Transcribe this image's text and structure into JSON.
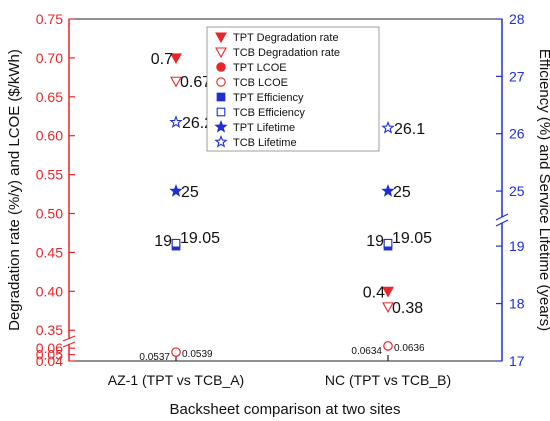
{
  "chart_data": {
    "type": "scatter",
    "categories": [
      "AZ-1 (TPT vs TCB_A)",
      "NC (TPT vs TCB_B)"
    ],
    "xlabel": "Backsheet comparison at two sites",
    "ylabel_left": "Degradation rate (%/y) and LCOE ($/kWh)",
    "ylabel_right": "Efficiency (%) and Service Lifetime (years)",
    "yaxis_left": {
      "lower_ticks": [
        "0.04",
        "0.05",
        "0.06"
      ],
      "upper_ticks": [
        "0.35",
        "0.40",
        "0.45",
        "0.50",
        "0.55",
        "0.60",
        "0.65",
        "0.70",
        "0.75"
      ],
      "lower_range": [
        0.04,
        0.065
      ],
      "upper_range": [
        0.34,
        0.75
      ],
      "break": true
    },
    "yaxis_right": {
      "lower_ticks": [
        "17",
        "18",
        "19"
      ],
      "upper_ticks": [
        "25",
        "26",
        "27",
        "28"
      ],
      "lower_range": [
        17,
        19.35
      ],
      "upper_range": [
        24.6,
        28
      ],
      "break": true
    },
    "legend": {
      "position": "top-center",
      "entries": [
        {
          "label": "TPT Degradation rate",
          "marker": "triangle-down-filled",
          "color": "#e8262a"
        },
        {
          "label": "TCB Degradation rate",
          "marker": "triangle-down-open",
          "color": "#e8262a"
        },
        {
          "label": "TPT LCOE",
          "marker": "circle-filled",
          "color": "#e8262a"
        },
        {
          "label": "TCB LCOE",
          "marker": "circle-open",
          "color": "#e8262a"
        },
        {
          "label": "TPT Efficiency",
          "marker": "square-filled",
          "color": "#1f2fd6"
        },
        {
          "label": "TCB Efficiency",
          "marker": "square-open",
          "color": "#1f2fd6"
        },
        {
          "label": "TPT Lifetime",
          "marker": "star-filled",
          "color": "#1f2fd6"
        },
        {
          "label": "TCB Lifetime",
          "marker": "star-open",
          "color": "#1f2fd6"
        }
      ]
    },
    "series": [
      {
        "name": "TPT Degradation rate",
        "axis": "left",
        "values": [
          0.7,
          0.4
        ],
        "labels": [
          "0.7",
          "0.4"
        ]
      },
      {
        "name": "TCB Degradation rate",
        "axis": "left",
        "values": [
          0.67,
          0.38
        ],
        "labels": [
          "0.67",
          "0.38"
        ]
      },
      {
        "name": "TPT LCOE",
        "axis": "left",
        "values": [
          0.0537,
          0.0634
        ],
        "labels": [
          "0.0537",
          "0.0634"
        ]
      },
      {
        "name": "TCB LCOE",
        "axis": "left",
        "values": [
          0.0539,
          0.0636
        ],
        "labels": [
          "0.0539",
          "0.0636"
        ]
      },
      {
        "name": "TPT Efficiency",
        "axis": "right",
        "values": [
          19,
          19
        ],
        "labels": [
          "19",
          "19"
        ]
      },
      {
        "name": "TCB Efficiency",
        "axis": "right",
        "values": [
          19.05,
          19.05
        ],
        "labels": [
          "19.05",
          "19.05"
        ]
      },
      {
        "name": "TPT Lifetime",
        "axis": "right",
        "values": [
          25,
          25
        ],
        "labels": [
          "25",
          "25"
        ]
      },
      {
        "name": "TCB Lifetime",
        "axis": "right",
        "values": [
          26.2,
          26.1
        ],
        "labels": [
          "26.2",
          "26.1"
        ]
      }
    ],
    "colors": {
      "red": "#e8262a",
      "blue": "#1f2fd6",
      "text": "#111111"
    }
  }
}
